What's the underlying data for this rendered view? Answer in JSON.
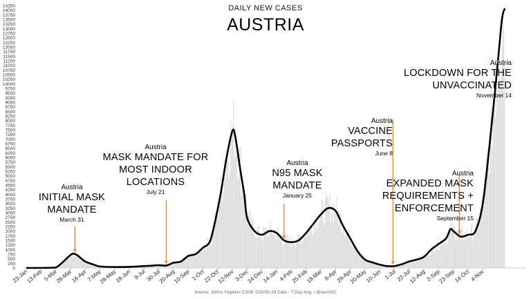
{
  "chart_data": {
    "type": "line",
    "title": "DAILY NEW CASES",
    "subtitle": "AUSTRIA",
    "source": "Source: Johns Hopkins CSSE COVID-19 Data - 7 Day Avg. / @ianmSC",
    "y_ticks": [
      0,
      250,
      500,
      750,
      1000,
      1250,
      1500,
      1750,
      2000,
      2250,
      2500,
      2750,
      3000,
      3250,
      3500,
      3750,
      4000,
      4250,
      4500,
      4750,
      5000,
      5250,
      5500,
      5750,
      6000,
      6250,
      6500,
      6750,
      7000,
      7250,
      7500,
      7750,
      8000,
      8250,
      8500,
      8750,
      9000,
      9250,
      9500,
      9750,
      10000,
      10250,
      10500,
      10750,
      11000,
      11250,
      11500,
      11750,
      12000,
      12250,
      12500,
      12750,
      13000,
      13250,
      13500,
      13750,
      14000,
      14250
    ],
    "x_ticks": [
      "23-Jan",
      "13-Feb",
      "5-Mar",
      "26-Mar",
      "16-Apr",
      "7-May",
      "28-May",
      "18-Jun",
      "9-Jul",
      "30-Jul",
      "20-Aug",
      "10-Sep",
      "1-Oct",
      "22-Oct",
      "12-Nov",
      "3-Dec",
      "24-Dec",
      "14-Jan",
      "4-Feb",
      "25-Feb",
      "18-Mar",
      "8-Apr",
      "29-Apr",
      "20-May",
      "10-Jun",
      "1-Jul",
      "22-Jul",
      "12-Aug",
      "2-Sep",
      "23-Sep",
      "14-Oct",
      "4-Nov"
    ],
    "ylim": [
      0,
      14250
    ],
    "grid": false,
    "series": [
      {
        "name": "",
        "x_index": [
          0,
          1,
          2,
          3,
          3.3,
          3.6,
          4,
          4.5,
          5,
          6,
          7,
          8,
          8.5,
          9,
          9.5,
          10,
          10.5,
          11,
          11.5,
          12,
          12.5,
          13,
          13.3,
          13.6,
          14,
          14.2,
          14.5,
          14.8,
          15,
          15.5,
          16,
          16.5,
          17,
          17.5,
          18,
          18.5,
          19,
          19.5,
          20,
          20.5,
          21,
          21.5,
          22,
          22.5,
          23,
          23.5,
          24,
          24.5,
          25,
          25.5,
          26,
          26.5,
          27,
          27.5,
          28,
          28.5,
          28.8,
          29,
          29.5,
          30,
          30.5,
          31,
          31.5,
          32,
          32.3,
          32.5
        ],
        "values": [
          0,
          0,
          20,
          700,
          760,
          600,
          350,
          200,
          80,
          50,
          60,
          100,
          120,
          150,
          130,
          280,
          350,
          650,
          750,
          1100,
          1500,
          3200,
          4500,
          6000,
          7450,
          7100,
          5500,
          4000,
          2700,
          2000,
          1800,
          2000,
          1900,
          1500,
          1400,
          1500,
          1900,
          2400,
          2900,
          3250,
          3100,
          2300,
          1600,
          900,
          450,
          300,
          180,
          100,
          100,
          200,
          350,
          450,
          600,
          1000,
          1300,
          1600,
          2100,
          2000,
          1700,
          1800,
          2000,
          3500,
          7000,
          11000,
          13500,
          14100
        ]
      }
    ],
    "annotations": [
      {
        "country": "Austria",
        "label_lines": [
          "INITIAL MASK",
          "MANDATE"
        ],
        "date": "March 31",
        "x_index": 3.3
      },
      {
        "country": "Austria",
        "label_lines": [
          "MASK MANDATE FOR",
          "MOST INDOOR",
          "LOCATIONS"
        ],
        "date": "July 21",
        "x_index": 9.5
      },
      {
        "country": "Austria",
        "label_lines": [
          "N95 MASK",
          "MANDATE"
        ],
        "date": "January 25",
        "x_index": 17.5
      },
      {
        "country": "Austria",
        "label_lines": [
          "VACCINE",
          "PASSPORTS"
        ],
        "date": "June 8",
        "x_index": 24.9
      },
      {
        "country": "Austria",
        "label_lines": [
          "EXPANDED MASK",
          "REQUIREMENTS +",
          "ENFORCEMENT"
        ],
        "date": "September 15",
        "x_index": 29.4
      },
      {
        "country": "Austria",
        "label_lines": [
          "LOCKDOWN FOR THE",
          "UNVACCINATED"
        ],
        "date": "November 14",
        "x_index": 32.0
      }
    ],
    "colors": {
      "line": "#000000",
      "bars": "#dcdcdc",
      "arrow": "#e8894a"
    }
  }
}
